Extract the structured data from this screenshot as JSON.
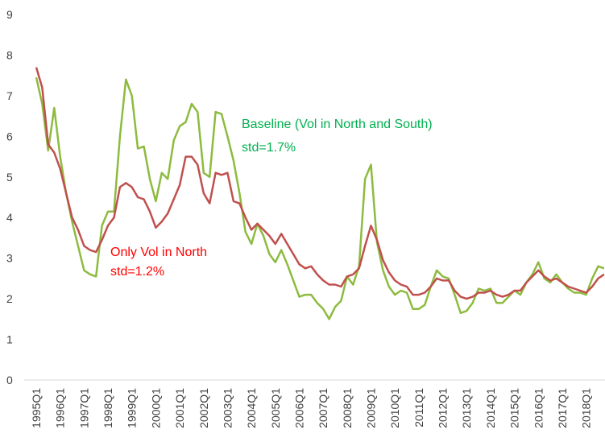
{
  "chart_data": {
    "type": "line",
    "categories": [
      "1995Q1",
      null,
      null,
      null,
      "1996Q1",
      null,
      null,
      null,
      "1997Q1",
      null,
      null,
      null,
      "1998Q1",
      null,
      null,
      null,
      "1999Q1",
      null,
      null,
      null,
      "2000Q1",
      null,
      null,
      null,
      "2001Q1",
      null,
      null,
      null,
      "2002Q1",
      null,
      null,
      null,
      "2003Q1",
      null,
      null,
      null,
      "2004Q1",
      null,
      null,
      null,
      "2005Q1",
      null,
      null,
      null,
      "2006Q1",
      null,
      null,
      null,
      "2007Q1",
      null,
      null,
      null,
      "2008Q1",
      null,
      null,
      null,
      "2009Q1",
      null,
      null,
      null,
      "2010Q1",
      null,
      null,
      null,
      "2011Q1",
      null,
      null,
      null,
      "2012Q1",
      null,
      null,
      null,
      "2013Q1",
      null,
      null,
      null,
      "2014Q1",
      null,
      null,
      null,
      "2015Q1",
      null,
      null,
      null,
      "2016Q1",
      null,
      null,
      null,
      "2017Q1",
      null,
      null,
      null,
      "2018Q1",
      null,
      null,
      null
    ],
    "series": [
      {
        "name": "Baseline (Vol in North and South)",
        "std": "std=1.7%",
        "color": "#8dbb3f",
        "label_color": "#00b050",
        "values": [
          7.45,
          6.8,
          5.65,
          6.7,
          5.5,
          4.6,
          3.9,
          3.3,
          2.7,
          2.6,
          2.55,
          3.8,
          4.15,
          4.15,
          6.0,
          7.4,
          7.0,
          5.7,
          5.75,
          4.95,
          4.4,
          5.1,
          4.95,
          5.9,
          6.25,
          6.35,
          6.8,
          6.6,
          5.1,
          5.0,
          6.6,
          6.55,
          6.0,
          5.4,
          4.6,
          3.65,
          3.35,
          3.85,
          3.55,
          3.1,
          2.9,
          3.2,
          2.85,
          2.45,
          2.05,
          2.1,
          2.1,
          1.9,
          1.75,
          1.5,
          1.8,
          1.95,
          2.55,
          2.35,
          2.8,
          4.95,
          5.3,
          3.4,
          2.7,
          2.3,
          2.1,
          2.2,
          2.15,
          1.75,
          1.75,
          1.85,
          2.3,
          2.7,
          2.55,
          2.5,
          2.1,
          1.65,
          1.7,
          1.9,
          2.25,
          2.2,
          2.25,
          1.9,
          1.9,
          2.05,
          2.2,
          2.1,
          2.4,
          2.6,
          2.9,
          2.5,
          2.4,
          2.6,
          2.4,
          2.25,
          2.15,
          2.15,
          2.1,
          2.5,
          2.8,
          2.75
        ]
      },
      {
        "name": "Only Vol in North",
        "std": "std=1.2%",
        "color": "#c0504d",
        "label_color": "#ff0000",
        "values": [
          7.7,
          7.2,
          5.8,
          5.6,
          5.2,
          4.6,
          4.0,
          3.7,
          3.3,
          3.2,
          3.15,
          3.45,
          3.8,
          4.0,
          4.75,
          4.85,
          4.75,
          4.5,
          4.45,
          4.15,
          3.75,
          3.9,
          4.1,
          4.45,
          4.8,
          5.5,
          5.5,
          5.3,
          4.6,
          4.35,
          5.1,
          5.05,
          5.1,
          4.4,
          4.35,
          4.0,
          3.7,
          3.85,
          3.7,
          3.55,
          3.35,
          3.6,
          3.35,
          3.1,
          2.85,
          2.75,
          2.8,
          2.6,
          2.45,
          2.35,
          2.35,
          2.3,
          2.55,
          2.6,
          2.75,
          3.3,
          3.8,
          3.45,
          2.95,
          2.65,
          2.45,
          2.35,
          2.3,
          2.1,
          2.1,
          2.15,
          2.3,
          2.5,
          2.45,
          2.45,
          2.2,
          2.05,
          2.0,
          2.05,
          2.15,
          2.15,
          2.2,
          2.1,
          2.05,
          2.1,
          2.2,
          2.2,
          2.4,
          2.55,
          2.7,
          2.55,
          2.45,
          2.5,
          2.4,
          2.3,
          2.25,
          2.2,
          2.15,
          2.3,
          2.5,
          2.6
        ]
      }
    ],
    "ylim": [
      0,
      9
    ],
    "yticks": [
      0,
      1,
      2,
      3,
      4,
      5,
      6,
      7,
      8,
      9
    ],
    "grid": false
  }
}
